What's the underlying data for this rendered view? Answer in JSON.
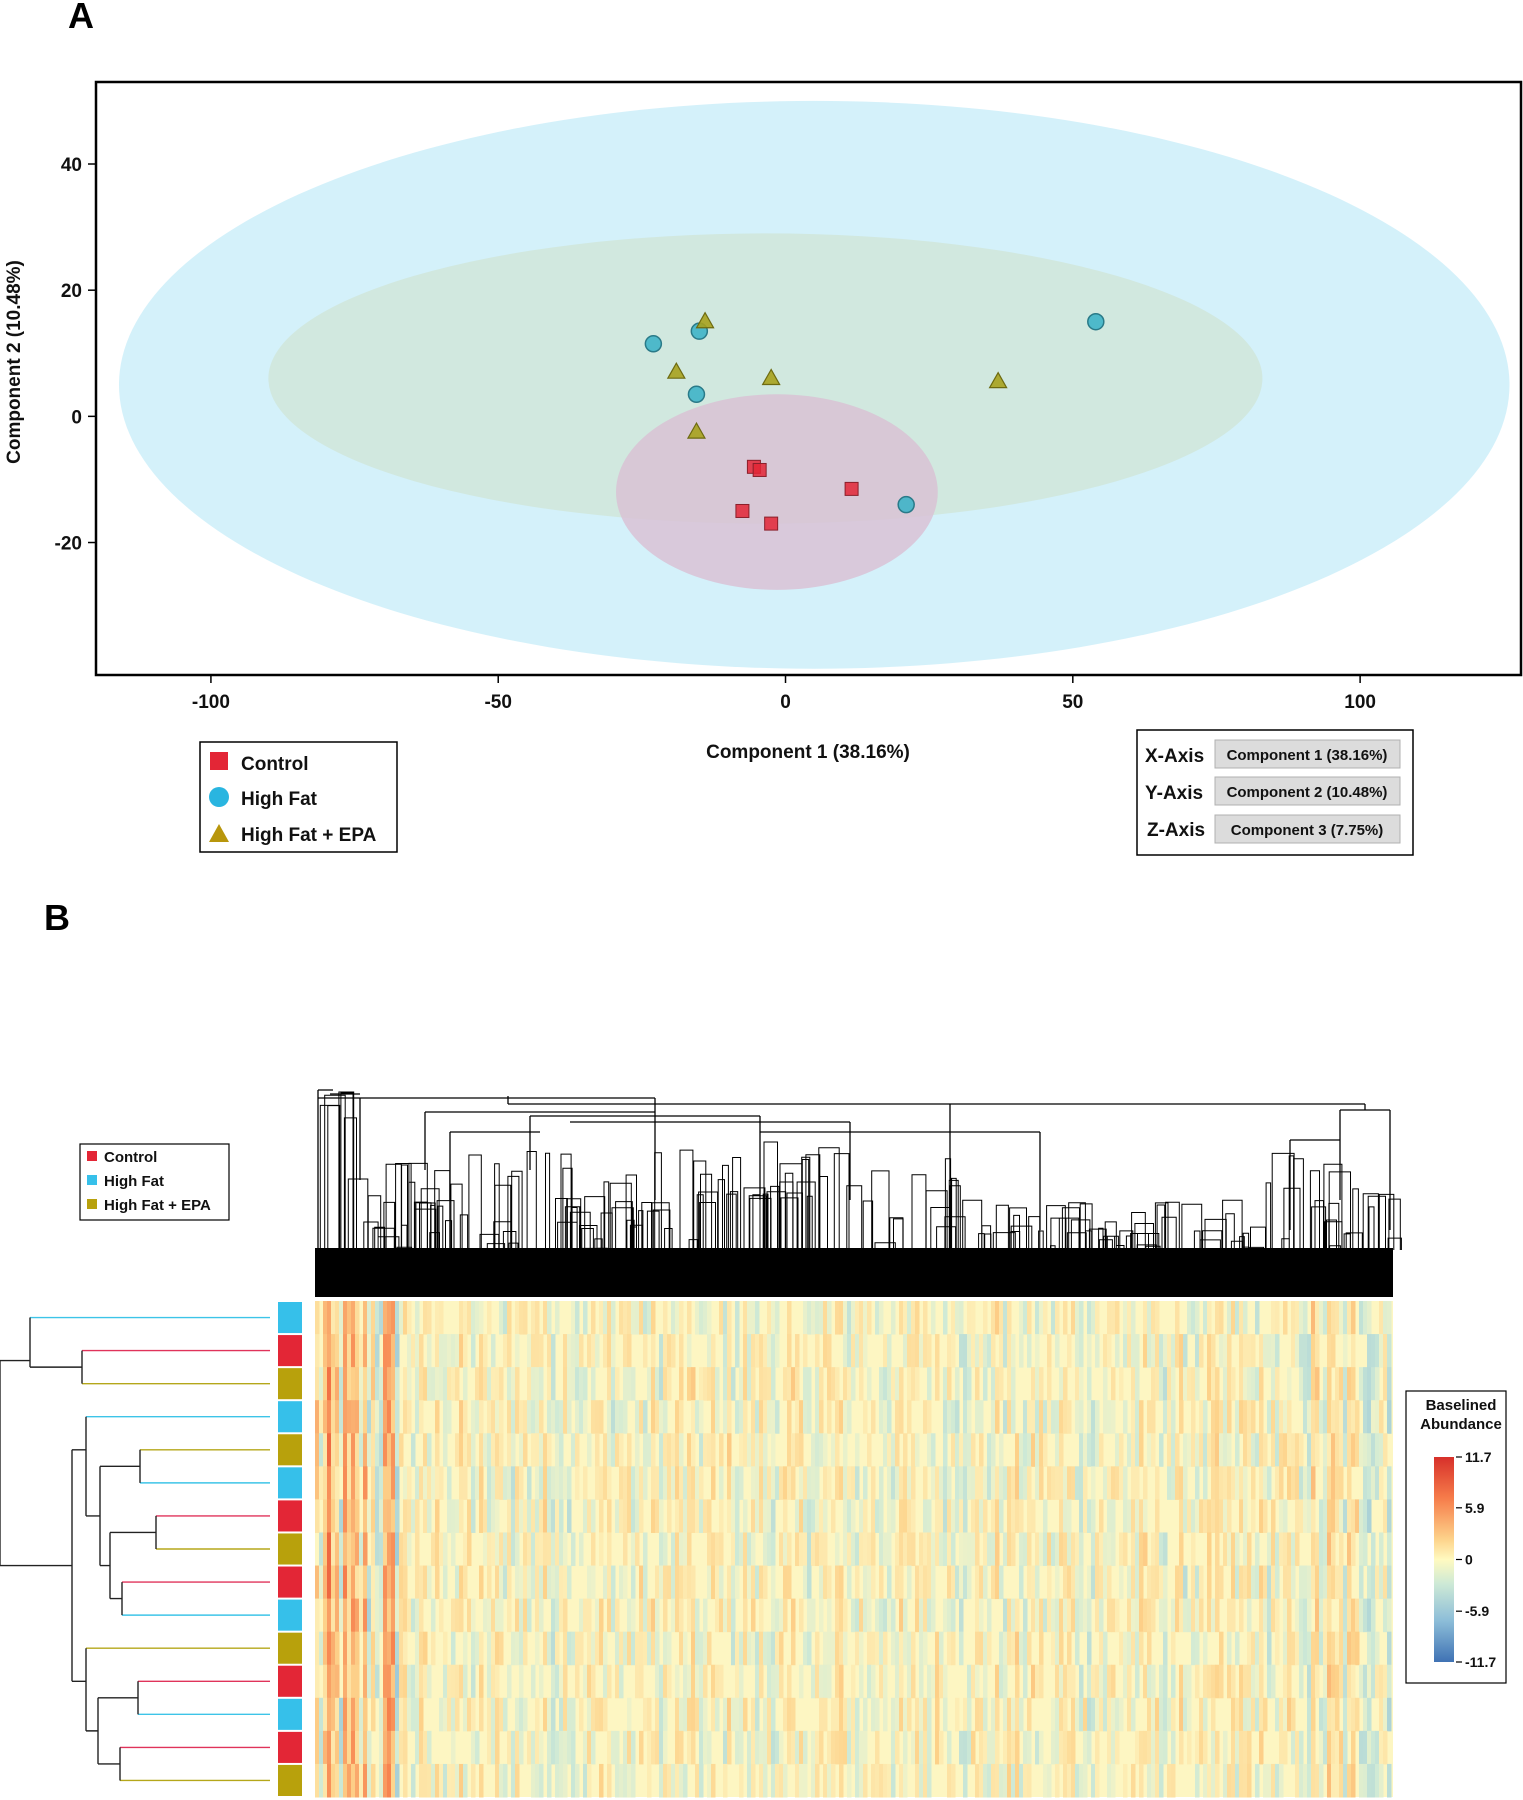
{
  "panels": {
    "a": "A",
    "b": "B"
  },
  "chart_data": [
    {
      "type": "scatter",
      "title": "",
      "xlabel": "Component 1 (38.16%)",
      "ylabel": "Component 2 (10.48%)",
      "xlim": [
        -120,
        128
      ],
      "ylim": [
        -41,
        53
      ],
      "xticks": [
        -100,
        -50,
        0,
        50,
        100
      ],
      "xtick_labels": [
        "-100",
        "-50",
        "0",
        "50",
        "100"
      ],
      "yticks": [
        40,
        20,
        0,
        -20
      ],
      "ytick_labels": [
        "40",
        "20",
        "0",
        "-20"
      ],
      "series": [
        {
          "name": "Control",
          "marker": "square",
          "color": "#e32636",
          "points": [
            [
              -5.5,
              -8
            ],
            [
              -4.5,
              -8.5
            ],
            [
              11.5,
              -11.5
            ],
            [
              -7.5,
              -15
            ],
            [
              -2.5,
              -17
            ]
          ]
        },
        {
          "name": "High Fat",
          "marker": "circle",
          "color": "#29b5e0",
          "points": [
            [
              -23,
              11.5
            ],
            [
              -15,
              13.5
            ],
            [
              -15.5,
              3.5
            ],
            [
              54,
              15
            ],
            [
              21,
              -14
            ]
          ]
        },
        {
          "name": "High Fat + EPA",
          "marker": "triangle",
          "color": "#b8960c",
          "points": [
            [
              -14,
              15
            ],
            [
              -19,
              7
            ],
            [
              -2.5,
              6
            ],
            [
              37,
              5.5
            ],
            [
              -15.5,
              -2.5
            ]
          ]
        }
      ],
      "ellipses": [
        {
          "group": "High Fat",
          "center": [
            5,
            5
          ],
          "radii": [
            121,
            45
          ],
          "color": "#cdeef9"
        },
        {
          "group": "High Fat + EPA",
          "center": [
            -3.5,
            6
          ],
          "radii": [
            86.5,
            23
          ],
          "color": "#cfe6d8"
        },
        {
          "group": "Control",
          "center": [
            -1.5,
            -12
          ],
          "radii": [
            28,
            15.5
          ],
          "color": "#d9bfd3"
        }
      ],
      "legend": {
        "position": "bottom-left",
        "items": [
          {
            "label": "Control",
            "marker": "square",
            "color": "#e32636"
          },
          {
            "label": "High Fat",
            "marker": "circle",
            "color": "#29b5e0"
          },
          {
            "label": "High Fat + EPA",
            "marker": "triangle",
            "color": "#b8960c"
          }
        ]
      },
      "axis_selector": [
        {
          "axis": "X-Axis",
          "value": "Component 1 (38.16%)"
        },
        {
          "axis": "Y-Axis",
          "value": "Component 2 (10.48%)"
        },
        {
          "axis": "Z-Axis",
          "value": "Component 3 (7.75%)"
        }
      ]
    },
    {
      "type": "heatmap",
      "title": "",
      "legend": {
        "position": "top-left",
        "items": [
          {
            "label": "Control",
            "color": "#e32636"
          },
          {
            "label": "High Fat",
            "color": "#36c0ea"
          },
          {
            "label": "High Fat + EPA",
            "color": "#b8a10c"
          }
        ]
      },
      "row_groups": [
        "High Fat",
        "Control",
        "High Fat + EPA",
        "High Fat",
        "High Fat + EPA",
        "High Fat",
        "Control",
        "High Fat + EPA",
        "Control",
        "High Fat",
        "High Fat + EPA",
        "Control",
        "High Fat",
        "Control",
        "High Fat + EPA"
      ],
      "colorbar": {
        "title_line1": "Baselined",
        "title_line2": "Abundance",
        "ticks": [
          11.7,
          5.9,
          0,
          -5.9,
          -11.7
        ],
        "tick_labels": [
          "11.7",
          "5.9",
          "0",
          "-5.9",
          "-11.7"
        ],
        "colors": [
          "#d7302a",
          "#f67c4a",
          "#fdd28a",
          "#fffac0",
          "#cde9d6",
          "#8cbdd8",
          "#3f72b4"
        ]
      }
    }
  ]
}
